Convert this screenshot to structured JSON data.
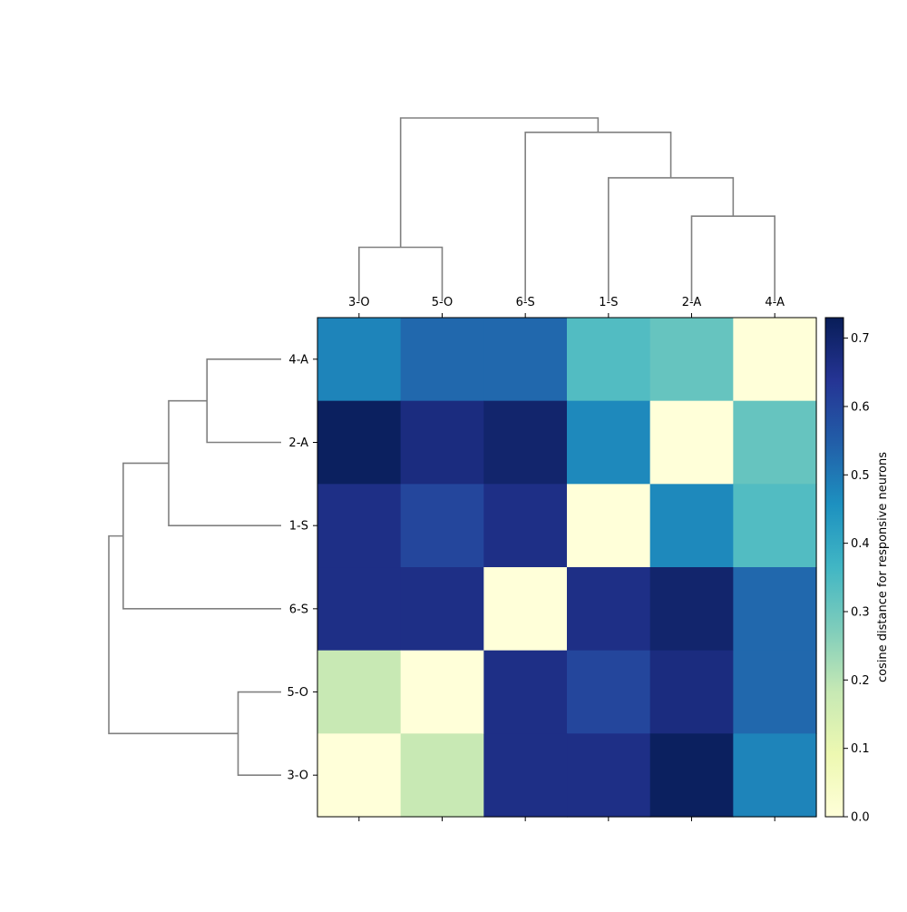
{
  "chart_data": {
    "type": "heatmap",
    "col_labels": [
      "3-O",
      "5-O",
      "6-S",
      "1-S",
      "2-A",
      "4-A"
    ],
    "row_labels": [
      "4-A",
      "2-A",
      "1-S",
      "6-S",
      "5-O",
      "3-O"
    ],
    "values": [
      [
        0.48,
        0.53,
        0.53,
        0.34,
        0.31,
        0.0
      ],
      [
        0.72,
        0.67,
        0.7,
        0.47,
        0.0,
        0.31
      ],
      [
        0.66,
        0.6,
        0.66,
        0.0,
        0.47,
        0.34
      ],
      [
        0.66,
        0.66,
        0.0,
        0.66,
        0.7,
        0.53
      ],
      [
        0.18,
        0.0,
        0.66,
        0.6,
        0.67,
        0.53
      ],
      [
        0.0,
        0.18,
        0.66,
        0.66,
        0.72,
        0.48
      ]
    ],
    "colorbar": {
      "label": "cosine distance for responsive neurons",
      "range": [
        0.0,
        0.73
      ],
      "ticks": [
        "0.0",
        "0.1",
        "0.2",
        "0.3",
        "0.4",
        "0.5",
        "0.6",
        "0.7"
      ],
      "colormap": "YlGnBu"
    },
    "dendrogram": {
      "line_color": "#808080",
      "merge_heights": [
        0.18,
        0.31,
        0.47,
        0.66,
        0.72
      ]
    }
  }
}
